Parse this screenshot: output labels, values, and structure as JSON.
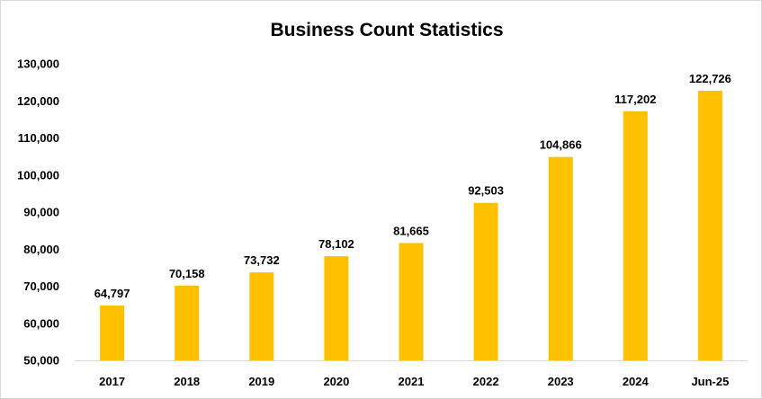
{
  "chart_data": {
    "type": "bar",
    "title": "Business Count Statistics",
    "xlabel": "",
    "ylabel": "",
    "categories": [
      "2017",
      "2018",
      "2019",
      "2020",
      "2021",
      "2022",
      "2023",
      "2024",
      "Jun-25"
    ],
    "values": [
      64797,
      70158,
      73732,
      78102,
      81665,
      92503,
      104866,
      117202,
      122726
    ],
    "data_labels": [
      "64,797",
      "70,158",
      "73,732",
      "78,102",
      "81,665",
      "92,503",
      "104,866",
      "117,202",
      "122,726"
    ],
    "ylim": [
      50000,
      130000
    ],
    "yticks": [
      50000,
      60000,
      70000,
      80000,
      90000,
      100000,
      110000,
      120000,
      130000
    ],
    "ytick_labels": [
      "50,000",
      "60,000",
      "70,000",
      "80,000",
      "90,000",
      "100,000",
      "110,000",
      "120,000",
      "130,000"
    ],
    "grid": false,
    "legend": "none",
    "bar_color": "#FFC000"
  }
}
